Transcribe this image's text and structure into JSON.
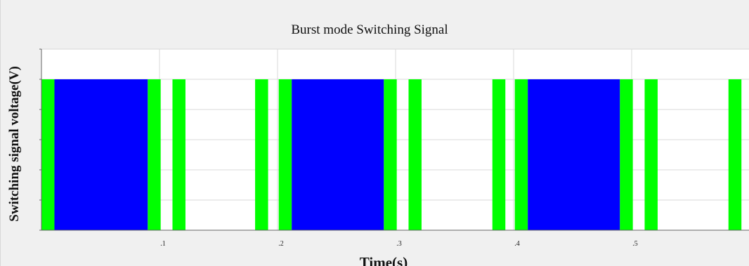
{
  "chart_data": {
    "type": "area",
    "title": "Burst mode Switching Signal",
    "xlabel": "Time(s)",
    "ylabel": "Switching signal voltage(V)",
    "xlim": [
      0,
      0.6
    ],
    "ylim": [
      0,
      1.2
    ],
    "grid": true,
    "xticks": [
      {
        "value": 0.1,
        "label": ".1"
      },
      {
        "value": 0.2,
        "label": ".2"
      },
      {
        "value": 0.3,
        "label": ".3"
      },
      {
        "value": 0.4,
        "label": ".4"
      },
      {
        "value": 0.5,
        "label": ".5"
      }
    ],
    "yticks": [
      0,
      0.2,
      0.4,
      0.6,
      0.8,
      1,
      1.2
    ],
    "pulse_level": 1,
    "colors": {
      "series_1": "#0000ff",
      "series_2": "#00ff00"
    },
    "series": [
      {
        "color": "#00ff00",
        "pulses": [
          {
            "start": 0.0,
            "end": 0.011
          },
          {
            "start": 0.09,
            "end": 0.101
          },
          {
            "start": 0.111,
            "end": 0.122
          },
          {
            "start": 0.181,
            "end": 0.192
          },
          {
            "start": 0.201,
            "end": 0.212
          },
          {
            "start": 0.29,
            "end": 0.301
          },
          {
            "start": 0.311,
            "end": 0.322
          },
          {
            "start": 0.382,
            "end": 0.393
          },
          {
            "start": 0.401,
            "end": 0.412
          },
          {
            "start": 0.49,
            "end": 0.501
          },
          {
            "start": 0.511,
            "end": 0.522
          },
          {
            "start": 0.582,
            "end": 0.593
          }
        ]
      },
      {
        "color": "#0000ff",
        "pulses": [
          {
            "start": 0.011,
            "end": 0.09
          },
          {
            "start": 0.212,
            "end": 0.29
          },
          {
            "start": 0.412,
            "end": 0.49
          }
        ]
      }
    ]
  }
}
